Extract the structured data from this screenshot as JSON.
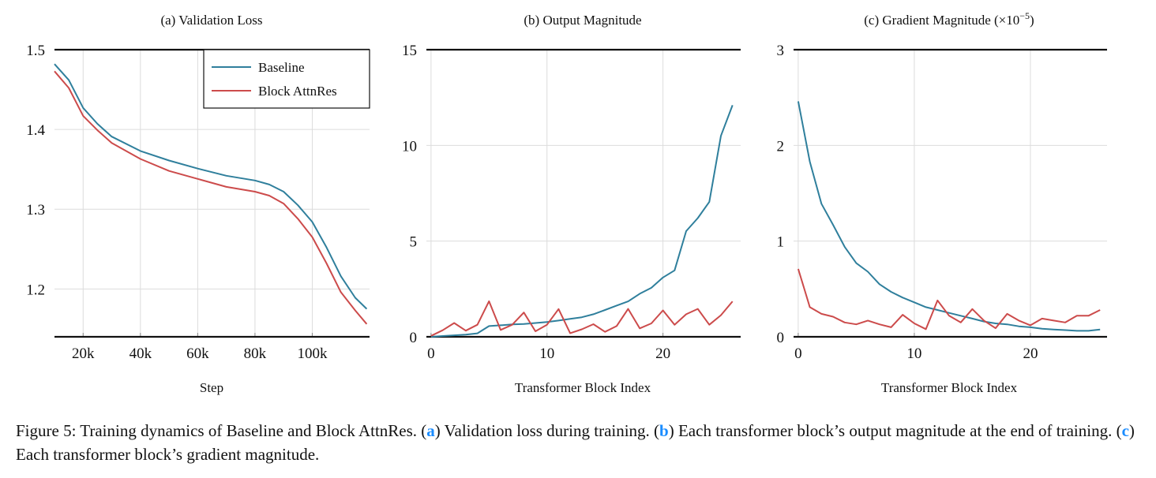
{
  "chart_data": [
    {
      "type": "line",
      "title": "(a) Validation Loss",
      "xlabel": "Step",
      "ylabel": "",
      "xlim": [
        10000,
        120000
      ],
      "ylim": [
        1.14,
        1.5
      ],
      "xticks": [
        20000,
        40000,
        60000,
        80000,
        100000
      ],
      "xtick_labels": [
        "20k",
        "40k",
        "60k",
        "80k",
        "100k"
      ],
      "yticks": [
        1.2,
        1.3,
        1.4,
        1.5
      ],
      "ytick_labels": [
        "1.2",
        "1.3",
        "1.4",
        "1.5"
      ],
      "grid": true,
      "legend": "top-right",
      "x": [
        10000,
        15000,
        20000,
        25000,
        30000,
        40000,
        50000,
        60000,
        70000,
        80000,
        85000,
        90000,
        95000,
        100000,
        105000,
        110000,
        115000,
        119000
      ],
      "series": [
        {
          "name": "Baseline",
          "color": "#2f7f9c",
          "values": [
            1.482,
            1.462,
            1.427,
            1.407,
            1.391,
            1.373,
            1.361,
            1.351,
            1.342,
            1.336,
            1.331,
            1.322,
            1.305,
            1.284,
            1.252,
            1.216,
            1.189,
            1.175
          ]
        },
        {
          "name": "Block AttnRes",
          "color": "#cc4b4b",
          "values": [
            1.473,
            1.452,
            1.417,
            1.399,
            1.383,
            1.363,
            1.348,
            1.338,
            1.328,
            1.322,
            1.317,
            1.307,
            1.288,
            1.265,
            1.232,
            1.196,
            1.173,
            1.156
          ]
        }
      ]
    },
    {
      "type": "line",
      "title": "(b) Output Magnitude",
      "xlabel": "Transformer Block Index",
      "ylabel": "",
      "xlim": [
        -0.4,
        26.7
      ],
      "ylim": [
        0,
        15
      ],
      "xticks": [
        0,
        10,
        20
      ],
      "xtick_labels": [
        "0",
        "10",
        "20"
      ],
      "yticks": [
        0,
        5,
        10,
        15
      ],
      "ytick_labels": [
        "0",
        "5",
        "10",
        "15"
      ],
      "grid": true,
      "x": [
        0,
        1,
        2,
        3,
        4,
        5,
        6,
        7,
        8,
        9,
        10,
        11,
        12,
        13,
        14,
        15,
        16,
        17,
        18,
        19,
        20,
        21,
        22,
        23,
        24,
        25,
        26
      ],
      "series": [
        {
          "name": "Baseline",
          "color": "#2f7f9c",
          "values": [
            0,
            0.04,
            0.08,
            0.11,
            0.18,
            0.56,
            0.6,
            0.65,
            0.67,
            0.72,
            0.77,
            0.85,
            0.94,
            1.02,
            1.18,
            1.4,
            1.63,
            1.85,
            2.25,
            2.56,
            3.1,
            3.47,
            5.52,
            6.2,
            7.05,
            10.5,
            12.1
          ]
        },
        {
          "name": "Block AttnRes",
          "color": "#cc4b4b",
          "values": [
            0.05,
            0.34,
            0.72,
            0.32,
            0.63,
            1.86,
            0.36,
            0.63,
            1.27,
            0.29,
            0.63,
            1.45,
            0.19,
            0.39,
            0.66,
            0.26,
            0.56,
            1.46,
            0.44,
            0.7,
            1.38,
            0.63,
            1.18,
            1.46,
            0.63,
            1.13,
            1.85
          ]
        }
      ]
    },
    {
      "type": "line",
      "title": "(c) Gradient Magnitude (×10",
      "title_exponent": "−5",
      "title_suffix": ")",
      "xlabel": "Transformer Block Index",
      "ylabel": "",
      "xlim": [
        -0.4,
        26.6
      ],
      "ylim": [
        0,
        3
      ],
      "xticks": [
        0,
        10,
        20
      ],
      "xtick_labels": [
        "0",
        "10",
        "20"
      ],
      "yticks": [
        0,
        1,
        2,
        3
      ],
      "ytick_labels": [
        "0",
        "1",
        "2",
        "3"
      ],
      "grid": true,
      "x": [
        0,
        1,
        2,
        3,
        4,
        5,
        6,
        7,
        8,
        9,
        10,
        11,
        12,
        13,
        14,
        15,
        16,
        17,
        18,
        19,
        20,
        21,
        22,
        23,
        24,
        25,
        26
      ],
      "series": [
        {
          "name": "Baseline",
          "color": "#2f7f9c",
          "values": [
            2.46,
            1.83,
            1.39,
            1.17,
            0.94,
            0.77,
            0.68,
            0.55,
            0.47,
            0.41,
            0.36,
            0.31,
            0.28,
            0.25,
            0.22,
            0.19,
            0.16,
            0.14,
            0.13,
            0.11,
            0.1,
            0.085,
            0.077,
            0.07,
            0.063,
            0.063,
            0.077
          ]
        },
        {
          "name": "Block AttnRes",
          "color": "#cc4b4b",
          "values": [
            0.71,
            0.31,
            0.24,
            0.21,
            0.15,
            0.13,
            0.17,
            0.13,
            0.1,
            0.23,
            0.14,
            0.08,
            0.38,
            0.22,
            0.15,
            0.29,
            0.17,
            0.09,
            0.24,
            0.17,
            0.12,
            0.19,
            0.17,
            0.15,
            0.22,
            0.22,
            0.28
          ]
        }
      ]
    }
  ],
  "caption": {
    "prefix": "Figure 5: Training dynamics of Baseline and Block AttnRes. (",
    "a_label": "a",
    "a_text": ") Validation loss during training. (",
    "b_label": "b",
    "b_text": ") Each transformer block’s output magnitude at the end of training. (",
    "c_label": "c",
    "c_text": ") Each transformer block’s gradient magnitude.",
    "label_color": "#1a8cff"
  }
}
